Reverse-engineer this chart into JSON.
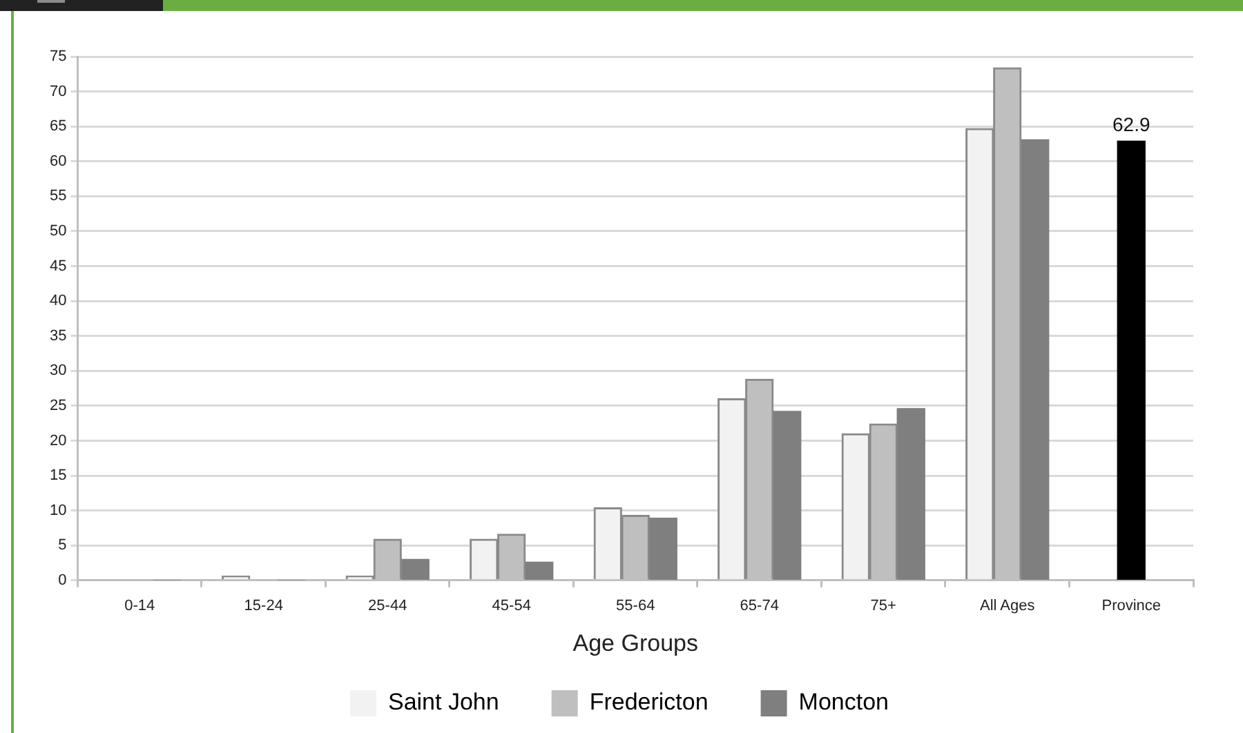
{
  "chart_data": {
    "type": "bar",
    "xlabel": "Age Groups",
    "categories": [
      "0-14",
      "15-24",
      "25-44",
      "45-54",
      "55-64",
      "65-74",
      "75+",
      "All Ages",
      "Province"
    ],
    "series": [
      {
        "name": "Saint John",
        "color": "#f2f2f2",
        "values": [
          0,
          0.6,
          0.6,
          5.9,
          10.4,
          26.0,
          21.0,
          64.7,
          null
        ]
      },
      {
        "name": "Fredericton",
        "color": "#bfbfbf",
        "values": [
          0,
          0,
          5.9,
          6.6,
          9.3,
          28.8,
          22.4,
          73.4,
          null
        ]
      },
      {
        "name": "Moncton",
        "color": "#7f7f7f",
        "values": [
          0,
          0,
          3.0,
          2.6,
          8.9,
          24.2,
          24.6,
          63.1,
          null
        ]
      },
      {
        "color": "#000000",
        "values": [
          null,
          null,
          null,
          null,
          null,
          null,
          null,
          null,
          62.9
        ],
        "value_labels": [
          null,
          null,
          null,
          null,
          null,
          null,
          null,
          null,
          "62.9"
        ]
      }
    ],
    "ylim": [
      0,
      75
    ],
    "yticks": [
      0,
      5,
      10,
      15,
      20,
      25,
      30,
      35,
      40,
      45,
      50,
      55,
      60,
      65,
      70,
      75
    ],
    "grid": "y",
    "legend": "bottom"
  }
}
